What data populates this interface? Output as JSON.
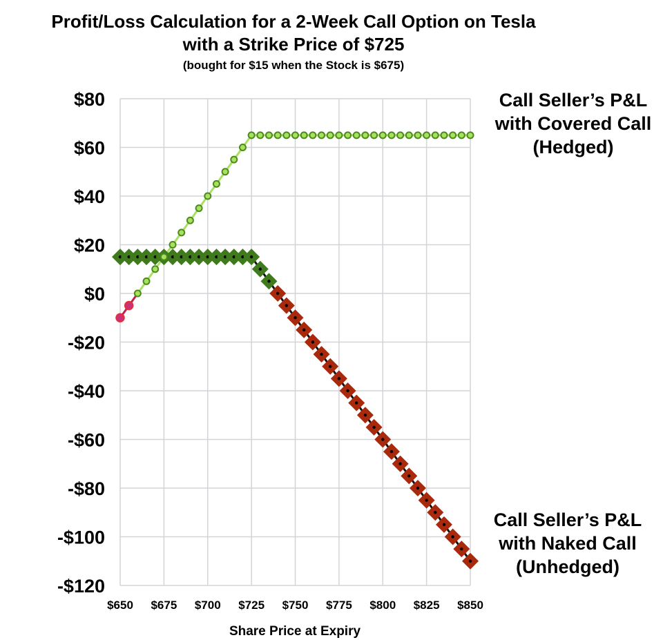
{
  "chart_data": {
    "type": "line",
    "title": "Profit/Loss Calculation for a 2-Week Call Option on Tesla",
    "title_line2": "with a Strike Price of $725",
    "subtitle": "(bought for $15 when the Stock is $675)",
    "xlabel": "Share Price at Expiry",
    "ylabel": "",
    "xlim": [
      650,
      850
    ],
    "ylim": [
      -120,
      80
    ],
    "grid": true,
    "x_ticks": [
      650,
      675,
      700,
      725,
      750,
      775,
      800,
      825,
      850
    ],
    "x_tick_labels": [
      "$650",
      "$675",
      "$700",
      "$725",
      "$750",
      "$775",
      "$800",
      "$825",
      "$850"
    ],
    "y_ticks": [
      80,
      60,
      40,
      20,
      0,
      -20,
      -40,
      -60,
      -80,
      -100,
      -120
    ],
    "y_tick_labels": [
      "$80",
      "$60",
      "$40",
      "$20",
      "$0",
      "-$20",
      "-$40",
      "-$60",
      "-$80",
      "-$100",
      "-$120"
    ],
    "x": [
      650,
      655,
      660,
      665,
      670,
      675,
      680,
      685,
      690,
      695,
      700,
      705,
      710,
      715,
      720,
      725,
      730,
      735,
      740,
      745,
      750,
      755,
      760,
      765,
      770,
      775,
      780,
      785,
      790,
      795,
      800,
      805,
      810,
      815,
      820,
      825,
      830,
      835,
      840,
      845,
      850
    ],
    "series": [
      {
        "name": "Call Seller's P&L with Covered Call (Hedged)",
        "marker": "circle",
        "color": "#a8e060",
        "edge": "#4d8a1e",
        "negative_color": "#e03040",
        "values": [
          -10,
          -5,
          0,
          5,
          10,
          15,
          20,
          25,
          30,
          35,
          40,
          45,
          50,
          55,
          60,
          65,
          65,
          65,
          65,
          65,
          65,
          65,
          65,
          65,
          65,
          65,
          65,
          65,
          65,
          65,
          65,
          65,
          65,
          65,
          65,
          65,
          65,
          65,
          65,
          65,
          65
        ]
      },
      {
        "name": "Call Seller's P&L with Naked Call (Unhedged)",
        "marker": "diamond",
        "color": "#3f7a1c",
        "negative_color": "#a8290c",
        "values": [
          15,
          15,
          15,
          15,
          15,
          15,
          15,
          15,
          15,
          15,
          15,
          15,
          15,
          15,
          15,
          15,
          10,
          5,
          0,
          -5,
          -10,
          -15,
          -20,
          -25,
          -30,
          -35,
          -40,
          -45,
          -50,
          -55,
          -60,
          -65,
          -70,
          -75,
          -80,
          -85,
          -90,
          -95,
          -100,
          -105,
          -110
        ]
      }
    ],
    "annotations": {
      "covered": [
        "Call Seller’s P&L",
        "with Covered Call",
        "(Hedged)"
      ],
      "naked": [
        "Call Seller’s P&L",
        "with Naked Call",
        "(Unhedged)"
      ]
    }
  }
}
